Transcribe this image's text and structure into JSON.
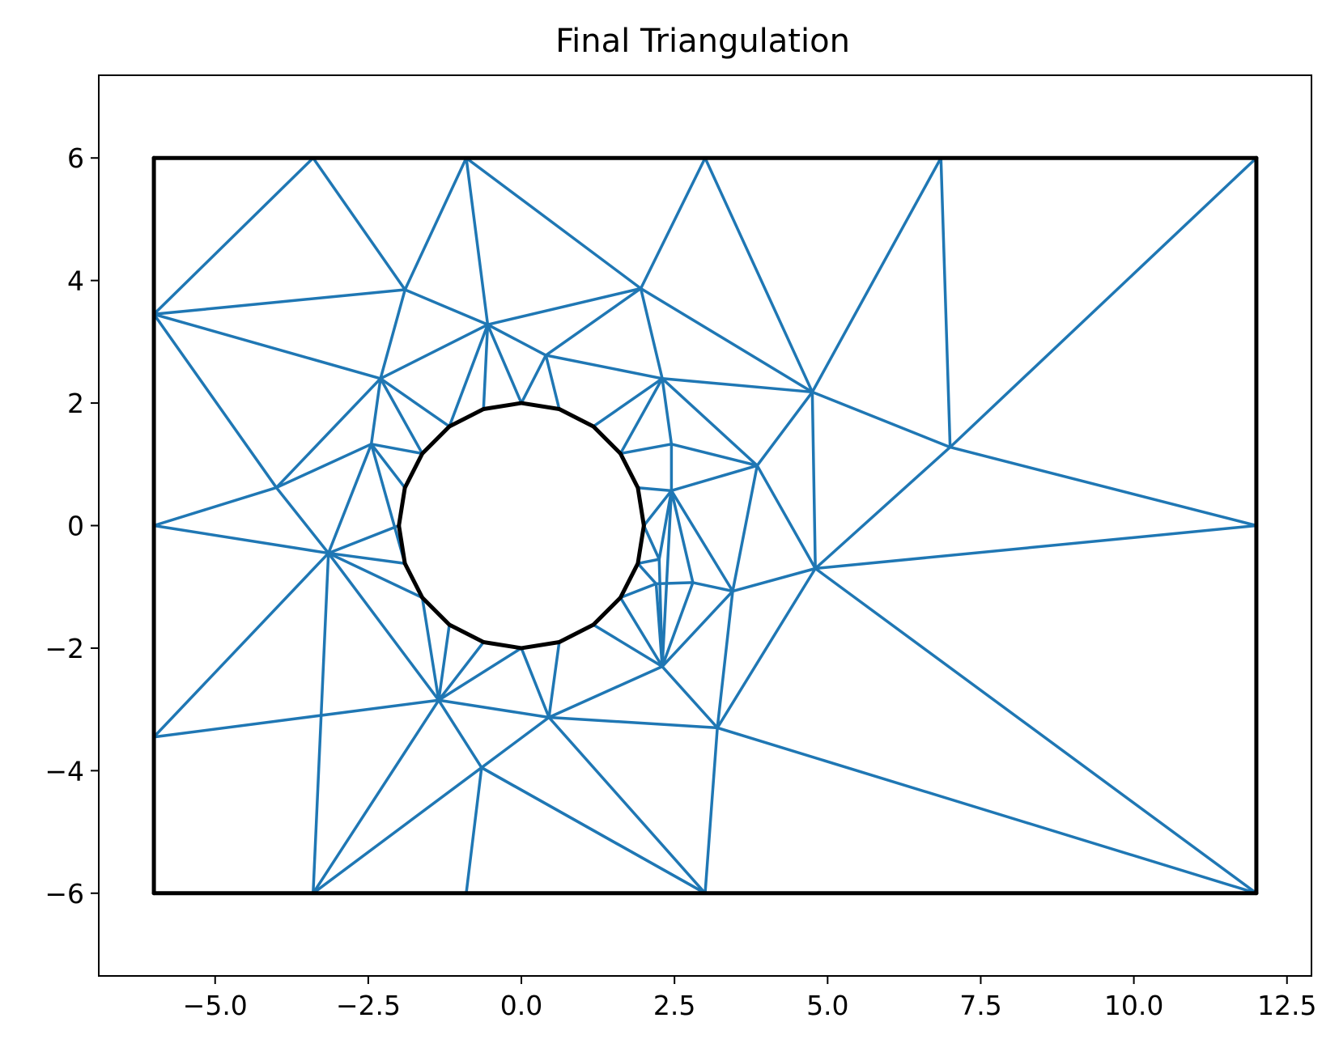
{
  "chart_data": {
    "type": "line",
    "title": "Final Triangulation",
    "xlabel": "",
    "ylabel": "",
    "xlim": [
      -6.9,
      12.9
    ],
    "ylim": [
      -7.35,
      7.35
    ],
    "xticks": [
      -5.0,
      -2.5,
      0.0,
      2.5,
      5.0,
      7.5,
      10.0,
      12.5
    ],
    "xtick_labels": [
      "−5.0",
      "−2.5",
      "0.0",
      "2.5",
      "5.0",
      "7.5",
      "10.0",
      "12.5"
    ],
    "yticks": [
      6,
      4,
      2,
      0,
      -2,
      -4,
      -6
    ],
    "ytick_labels": [
      "6",
      "4",
      "2",
      "0",
      "−2",
      "−4",
      "−6"
    ],
    "grid": false,
    "colors": {
      "mesh": "#1f77b4",
      "boundary": "#000000"
    },
    "nodes": {
      "C0": [
        2.0,
        0.0
      ],
      "C1": [
        1.902,
        0.618
      ],
      "C2": [
        1.618,
        1.176
      ],
      "C3": [
        1.176,
        1.618
      ],
      "C4": [
        0.618,
        1.902
      ],
      "C5": [
        0.0,
        2.0
      ],
      "C6": [
        -0.618,
        1.902
      ],
      "C7": [
        -1.176,
        1.618
      ],
      "C8": [
        -1.618,
        1.176
      ],
      "C9": [
        -1.902,
        0.618
      ],
      "C10": [
        -2.0,
        0.0
      ],
      "C11": [
        -1.902,
        -0.618
      ],
      "C12": [
        -1.618,
        -1.176
      ],
      "C13": [
        -1.176,
        -1.618
      ],
      "C14": [
        -0.618,
        -1.902
      ],
      "C15": [
        0.0,
        -2.0
      ],
      "C16": [
        0.618,
        -1.902
      ],
      "C17": [
        1.176,
        -1.618
      ],
      "C18": [
        1.618,
        -1.176
      ],
      "C19": [
        1.902,
        -0.618
      ],
      "R1": [
        -6.0,
        6.0
      ],
      "R2": [
        -3.4,
        6.0
      ],
      "R3": [
        -0.9,
        6.0
      ],
      "R4": [
        3.0,
        6.0
      ],
      "R5": [
        6.85,
        6.0
      ],
      "R6": [
        12.0,
        6.0
      ],
      "R7": [
        -6.0,
        3.45
      ],
      "R8": [
        -6.0,
        0.0
      ],
      "R9": [
        -6.0,
        -3.45
      ],
      "R10": [
        -6.0,
        -6.0
      ],
      "R11": [
        -3.4,
        -6.0
      ],
      "R12": [
        -0.9,
        -6.0
      ],
      "R13": [
        3.0,
        -6.0
      ],
      "R14": [
        12.0,
        -6.0
      ],
      "R15": [
        12.0,
        0.0
      ],
      "A": [
        -1.9,
        3.85
      ],
      "B": [
        -0.55,
        3.28
      ],
      "D": [
        0.4,
        2.78
      ],
      "E": [
        1.95,
        3.87
      ],
      "F": [
        2.3,
        2.4
      ],
      "G": [
        4.75,
        2.18
      ],
      "H": [
        7.0,
        1.28
      ],
      "J": [
        -2.3,
        2.4
      ],
      "K": [
        -2.45,
        1.33
      ],
      "L": [
        -4.0,
        0.62
      ],
      "M": [
        -3.15,
        -0.45
      ],
      "N": [
        2.45,
        1.33
      ],
      "P": [
        3.85,
        0.98
      ],
      "Q": [
        2.45,
        0.57
      ],
      "S": [
        4.8,
        -0.7
      ],
      "T": [
        3.45,
        -1.07
      ],
      "U": [
        2.8,
        -0.93
      ],
      "V": [
        2.2,
        -0.95
      ],
      "W": [
        2.25,
        -0.55
      ],
      "X": [
        2.3,
        -2.3
      ],
      "Y": [
        3.2,
        -3.3
      ],
      "Z": [
        -1.35,
        -2.85
      ],
      "AA": [
        0.45,
        -3.13
      ],
      "AB": [
        -0.65,
        -3.95
      ]
    },
    "mesh_edges": [
      [
        "R1",
        "R2"
      ],
      [
        "R2",
        "R3"
      ],
      [
        "R3",
        "R4"
      ],
      [
        "R4",
        "R5"
      ],
      [
        "R5",
        "R6"
      ],
      [
        "R1",
        "R7"
      ],
      [
        "R7",
        "R8"
      ],
      [
        "R8",
        "R9"
      ],
      [
        "R9",
        "R10"
      ],
      [
        "R10",
        "R11"
      ],
      [
        "R11",
        "R12"
      ],
      [
        "R12",
        "R13"
      ],
      [
        "R13",
        "R14"
      ],
      [
        "R6",
        "R15"
      ],
      [
        "R15",
        "R14"
      ],
      [
        "R7",
        "R2"
      ],
      [
        "R2",
        "A"
      ],
      [
        "R7",
        "A"
      ],
      [
        "R7",
        "J"
      ],
      [
        "R7",
        "L"
      ],
      [
        "A",
        "R3"
      ],
      [
        "A",
        "B"
      ],
      [
        "A",
        "J"
      ],
      [
        "R3",
        "B"
      ],
      [
        "R3",
        "E"
      ],
      [
        "R4",
        "E"
      ],
      [
        "R4",
        "G"
      ],
      [
        "E",
        "G"
      ],
      [
        "E",
        "B"
      ],
      [
        "E",
        "D"
      ],
      [
        "E",
        "F"
      ],
      [
        "R5",
        "H"
      ],
      [
        "R5",
        "G"
      ],
      [
        "R6",
        "H"
      ],
      [
        "H",
        "G"
      ],
      [
        "H",
        "S"
      ],
      [
        "H",
        "R15"
      ],
      [
        "R15",
        "S"
      ],
      [
        "R14",
        "S"
      ],
      [
        "R14",
        "Y"
      ],
      [
        "R13",
        "Y"
      ],
      [
        "R13",
        "AA"
      ],
      [
        "R13",
        "AB"
      ],
      [
        "R12",
        "AB"
      ],
      [
        "R11",
        "AB"
      ],
      [
        "R11",
        "Z"
      ],
      [
        "R11",
        "M"
      ],
      [
        "R9",
        "M"
      ],
      [
        "R9",
        "Z"
      ],
      [
        "R10",
        "R11"
      ],
      [
        "L",
        "J"
      ],
      [
        "L",
        "K"
      ],
      [
        "L",
        "R8"
      ],
      [
        "L",
        "M"
      ],
      [
        "R8",
        "M"
      ],
      [
        "M",
        "K"
      ],
      [
        "M",
        "C10"
      ],
      [
        "M",
        "C11"
      ],
      [
        "M",
        "C12"
      ],
      [
        "M",
        "Z"
      ],
      [
        "J",
        "B"
      ],
      [
        "J",
        "K"
      ],
      [
        "J",
        "C7"
      ],
      [
        "J",
        "C8"
      ],
      [
        "K",
        "C8"
      ],
      [
        "K",
        "C9"
      ],
      [
        "K",
        "C11"
      ],
      [
        "B",
        "C6"
      ],
      [
        "B",
        "C5"
      ],
      [
        "B",
        "C7"
      ],
      [
        "B",
        "D"
      ],
      [
        "D",
        "C5"
      ],
      [
        "D",
        "C4"
      ],
      [
        "D",
        "F"
      ],
      [
        "F",
        "C3"
      ],
      [
        "F",
        "C2"
      ],
      [
        "F",
        "N"
      ],
      [
        "F",
        "G"
      ],
      [
        "F",
        "P"
      ],
      [
        "G",
        "P"
      ],
      [
        "G",
        "S"
      ],
      [
        "N",
        "C2"
      ],
      [
        "N",
        "Q"
      ],
      [
        "N",
        "P"
      ],
      [
        "Q",
        "C1"
      ],
      [
        "Q",
        "C0"
      ],
      [
        "Q",
        "P"
      ],
      [
        "Q",
        "W"
      ],
      [
        "Q",
        "U"
      ],
      [
        "Q",
        "T"
      ],
      [
        "Q",
        "X"
      ],
      [
        "P",
        "S"
      ],
      [
        "P",
        "T"
      ],
      [
        "S",
        "T"
      ],
      [
        "S",
        "Y"
      ],
      [
        "T",
        "U"
      ],
      [
        "T",
        "Y"
      ],
      [
        "T",
        "X"
      ],
      [
        "U",
        "V"
      ],
      [
        "U",
        "X"
      ],
      [
        "V",
        "C19"
      ],
      [
        "V",
        "C18"
      ],
      [
        "V",
        "X"
      ],
      [
        "W",
        "C19"
      ],
      [
        "W",
        "C0"
      ],
      [
        "W",
        "X"
      ],
      [
        "X",
        "C18"
      ],
      [
        "X",
        "C17"
      ],
      [
        "X",
        "AA"
      ],
      [
        "X",
        "Y"
      ],
      [
        "Y",
        "AA"
      ],
      [
        "Z",
        "C12"
      ],
      [
        "Z",
        "C13"
      ],
      [
        "Z",
        "C14"
      ],
      [
        "Z",
        "C15"
      ],
      [
        "Z",
        "AA"
      ],
      [
        "Z",
        "AB"
      ],
      [
        "AA",
        "C15"
      ],
      [
        "AA",
        "C16"
      ],
      [
        "AA",
        "AB"
      ],
      [
        "AB",
        "R13"
      ]
    ],
    "boundary_edges": [
      [
        "R1",
        "R6"
      ],
      [
        "R6",
        "R14"
      ],
      [
        "R14",
        "R10"
      ],
      [
        "R10",
        "R1"
      ],
      [
        "C0",
        "C1"
      ],
      [
        "C1",
        "C2"
      ],
      [
        "C2",
        "C3"
      ],
      [
        "C3",
        "C4"
      ],
      [
        "C4",
        "C5"
      ],
      [
        "C5",
        "C6"
      ],
      [
        "C6",
        "C7"
      ],
      [
        "C7",
        "C8"
      ],
      [
        "C8",
        "C9"
      ],
      [
        "C9",
        "C10"
      ],
      [
        "C10",
        "C11"
      ],
      [
        "C11",
        "C12"
      ],
      [
        "C12",
        "C13"
      ],
      [
        "C13",
        "C14"
      ],
      [
        "C14",
        "C15"
      ],
      [
        "C15",
        "C16"
      ],
      [
        "C16",
        "C17"
      ],
      [
        "C17",
        "C18"
      ],
      [
        "C18",
        "C19"
      ],
      [
        "C19",
        "C0"
      ]
    ]
  }
}
